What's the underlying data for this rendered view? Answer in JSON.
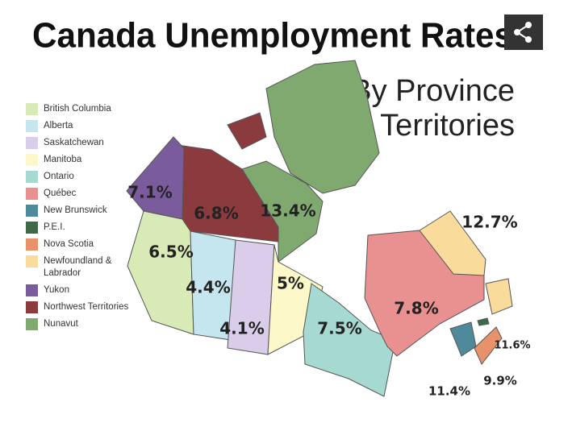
{
  "title": "Canada Unemployment Rates",
  "subtitle": [
    "By Province",
    "& Territories"
  ],
  "legend": [
    {
      "name": "British Columbia",
      "color": "#d8eab6"
    },
    {
      "name": "Alberta",
      "color": "#c6e6ef"
    },
    {
      "name": "Saskatchewan",
      "color": "#dacdea"
    },
    {
      "name": "Manitoba",
      "color": "#fdf8c9"
    },
    {
      "name": "Ontario",
      "color": "#a6d9d1"
    },
    {
      "name": "Québec",
      "color": "#e99090"
    },
    {
      "name": "New Brunswick",
      "color": "#4f8a9a"
    },
    {
      "name": "P.E.I.",
      "color": "#3f6a48"
    },
    {
      "name": "Nova Scotia",
      "color": "#e8926b"
    },
    {
      "name": "Newfoundland & Labrador",
      "color": "#f9dc9b"
    },
    {
      "name": "Yukon",
      "color": "#7a5c9c"
    },
    {
      "name": "Northwest Territories",
      "color": "#8b3b3d"
    },
    {
      "name": "Nunavut",
      "color": "#80a970"
    }
  ],
  "labels": [
    "7.1%",
    "6.8%",
    "13.4%",
    "6.5%",
    "4.4%",
    "5%",
    "4.1%",
    "7.5%",
    "7.8%",
    "12.7%",
    "11.6%",
    "9.9%",
    "11.4%"
  ]
}
